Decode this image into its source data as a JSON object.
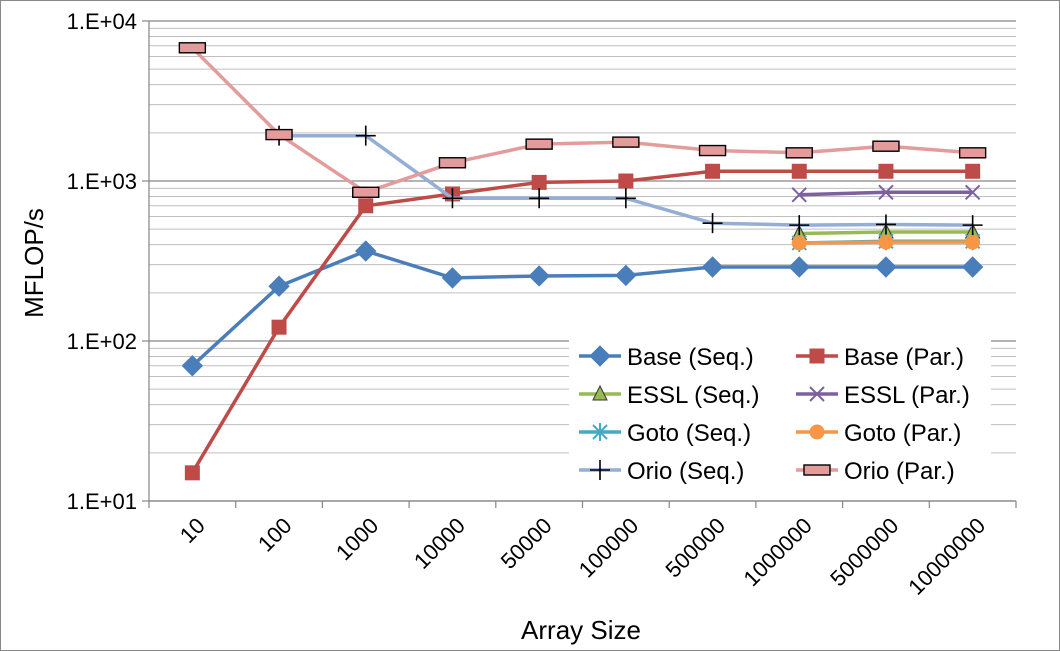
{
  "chart_data": {
    "type": "line",
    "xlabel": "Array Size",
    "ylabel": "MFLOP/s",
    "yscale": "log",
    "ylim": [
      10,
      10000
    ],
    "y_ticks": [
      "1.E+01",
      "1.E+02",
      "1.E+03",
      "1.E+04"
    ],
    "categories": [
      "10",
      "100",
      "1000",
      "10000",
      "50000",
      "100000",
      "500000",
      "1000000",
      "5000000",
      "10000000"
    ],
    "grid": "horizontal major and minor",
    "legend_position": "bottom-right",
    "series": [
      {
        "name": "Base (Seq.)",
        "color": "#4a7ebb",
        "marker": "diamond",
        "values": [
          70,
          220,
          365,
          248,
          255,
          257,
          290,
          290,
          290,
          290
        ]
      },
      {
        "name": "Base (Par.)",
        "color": "#be4b48",
        "marker": "square",
        "values": [
          15,
          122,
          700,
          830,
          980,
          1000,
          1150,
          1150,
          1150,
          1150
        ]
      },
      {
        "name": "ESSL (Seq.)",
        "color": "#98b954",
        "marker": "triangle",
        "values": [
          null,
          null,
          null,
          null,
          null,
          null,
          null,
          470,
          480,
          480
        ]
      },
      {
        "name": "ESSL (Par.)",
        "color": "#7d60a0",
        "marker": "x",
        "values": [
          null,
          null,
          null,
          null,
          null,
          null,
          null,
          820,
          850,
          850
        ]
      },
      {
        "name": "Goto (Seq.)",
        "color": "#46aac5",
        "marker": "asterisk",
        "values": [
          null,
          null,
          null,
          null,
          null,
          null,
          null,
          410,
          420,
          420
        ]
      },
      {
        "name": "Goto (Par.)",
        "color": "#f79646",
        "marker": "circle",
        "values": [
          null,
          null,
          null,
          null,
          null,
          null,
          null,
          410,
          415,
          415
        ]
      },
      {
        "name": "Orio (Seq.)",
        "color": "#94aed6",
        "marker": "plus",
        "values": [
          null,
          1920,
          1920,
          780,
          780,
          780,
          545,
          530,
          535,
          530
        ]
      },
      {
        "name": "Orio (Par.)",
        "color": "#e39c9b",
        "marker": "dash",
        "values": [
          6800,
          1950,
          850,
          1300,
          1700,
          1750,
          1550,
          1500,
          1650,
          1500
        ]
      }
    ]
  }
}
